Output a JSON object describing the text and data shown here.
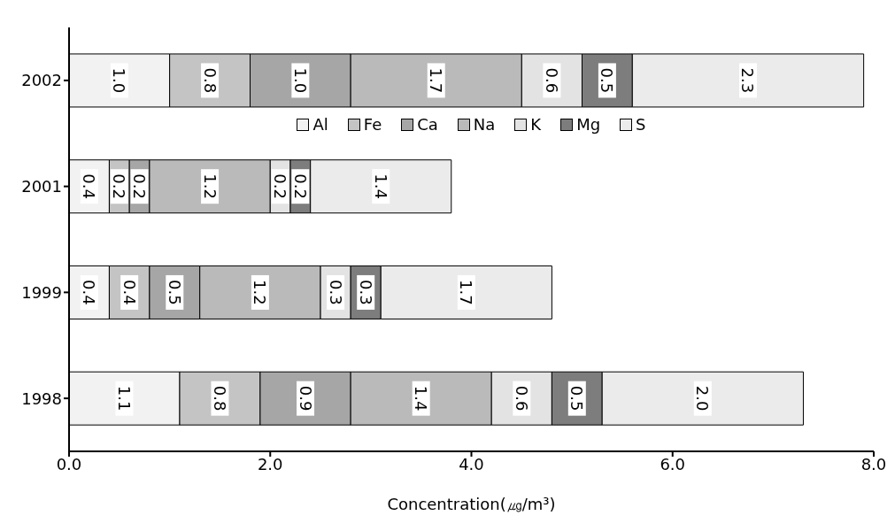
{
  "chart_data": {
    "type": "bar",
    "orientation": "horizontal",
    "stacked": true,
    "xlabel": "Concentration(㎍/m³)",
    "categories": [
      "2002",
      "2001",
      "1999",
      "1998"
    ],
    "series": [
      {
        "name": "Al",
        "color": "#f2f2f2",
        "values": [
          1.0,
          0.4,
          0.4,
          1.1
        ],
        "value_labels": [
          "1.0",
          "0.4",
          "0.4",
          "1.1"
        ]
      },
      {
        "name": "Fe",
        "color": "#c4c4c4",
        "values": [
          0.8,
          0.2,
          0.4,
          0.8
        ],
        "value_labels": [
          "0.8",
          "0.2",
          "0.4",
          "0.8"
        ]
      },
      {
        "name": "Ca",
        "color": "#a6a6a6",
        "values": [
          1.0,
          0.2,
          0.5,
          0.9
        ],
        "value_labels": [
          "1.0",
          "0.2",
          "0.5",
          "0.9"
        ]
      },
      {
        "name": "Na",
        "color": "#bababa",
        "values": [
          1.7,
          1.2,
          1.2,
          1.4
        ],
        "value_labels": [
          "1.7",
          "1.2",
          "1.2",
          "1.4"
        ]
      },
      {
        "name": "K",
        "color": "#e3e3e3",
        "values": [
          0.6,
          0.2,
          0.3,
          0.6
        ],
        "value_labels": [
          "0.6",
          "0.2",
          "0.3",
          "0.6"
        ]
      },
      {
        "name": "Mg",
        "color": "#7d7d7d",
        "values": [
          0.5,
          0.2,
          0.3,
          0.5
        ],
        "value_labels": [
          "0.5",
          "0.2",
          "0.3",
          "0.5"
        ]
      },
      {
        "name": "S",
        "color": "#ebebeb",
        "values": [
          2.3,
          1.4,
          1.7,
          2.0
        ],
        "value_labels": [
          "2.3",
          "1.4",
          "1.7",
          "2.0"
        ]
      }
    ],
    "xlim": [
      0,
      8
    ],
    "xticks": [
      {
        "value": 0,
        "label": "0.0"
      },
      {
        "value": 2,
        "label": "2.0"
      },
      {
        "value": 4,
        "label": "4.0"
      },
      {
        "value": 6,
        "label": "6.0"
      },
      {
        "value": 8,
        "label": "8.0"
      }
    ],
    "grid": false,
    "legend": "top"
  }
}
